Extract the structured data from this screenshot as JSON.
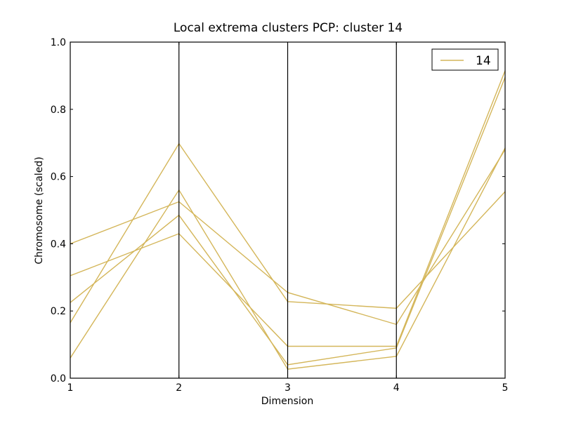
{
  "chart_data": {
    "type": "line",
    "title": "Local extrema clusters PCP: cluster 14",
    "xlabel": "Dimension",
    "ylabel": "Chromosome (scaled)",
    "x": [
      1,
      2,
      3,
      4,
      5
    ],
    "xlim": [
      1,
      5
    ],
    "ylim": [
      0.0,
      1.0
    ],
    "x_ticks": [
      "1",
      "2",
      "3",
      "4",
      "5"
    ],
    "y_ticks": [
      "0.0",
      "0.2",
      "0.4",
      "0.6",
      "0.8",
      "1.0"
    ],
    "line_color": "#d4b65a",
    "legend": {
      "placement": "top-right",
      "label": "14"
    },
    "series": [
      {
        "values": [
          0.4,
          0.525,
          0.255,
          0.16,
          0.68
        ]
      },
      {
        "values": [
          0.305,
          0.43,
          0.095,
          0.095,
          0.915
        ]
      },
      {
        "values": [
          0.225,
          0.485,
          0.04,
          0.09,
          0.895
        ]
      },
      {
        "values": [
          0.165,
          0.698,
          0.228,
          0.208,
          0.555
        ]
      },
      {
        "values": [
          0.06,
          0.56,
          0.027,
          0.065,
          0.685
        ]
      }
    ]
  }
}
